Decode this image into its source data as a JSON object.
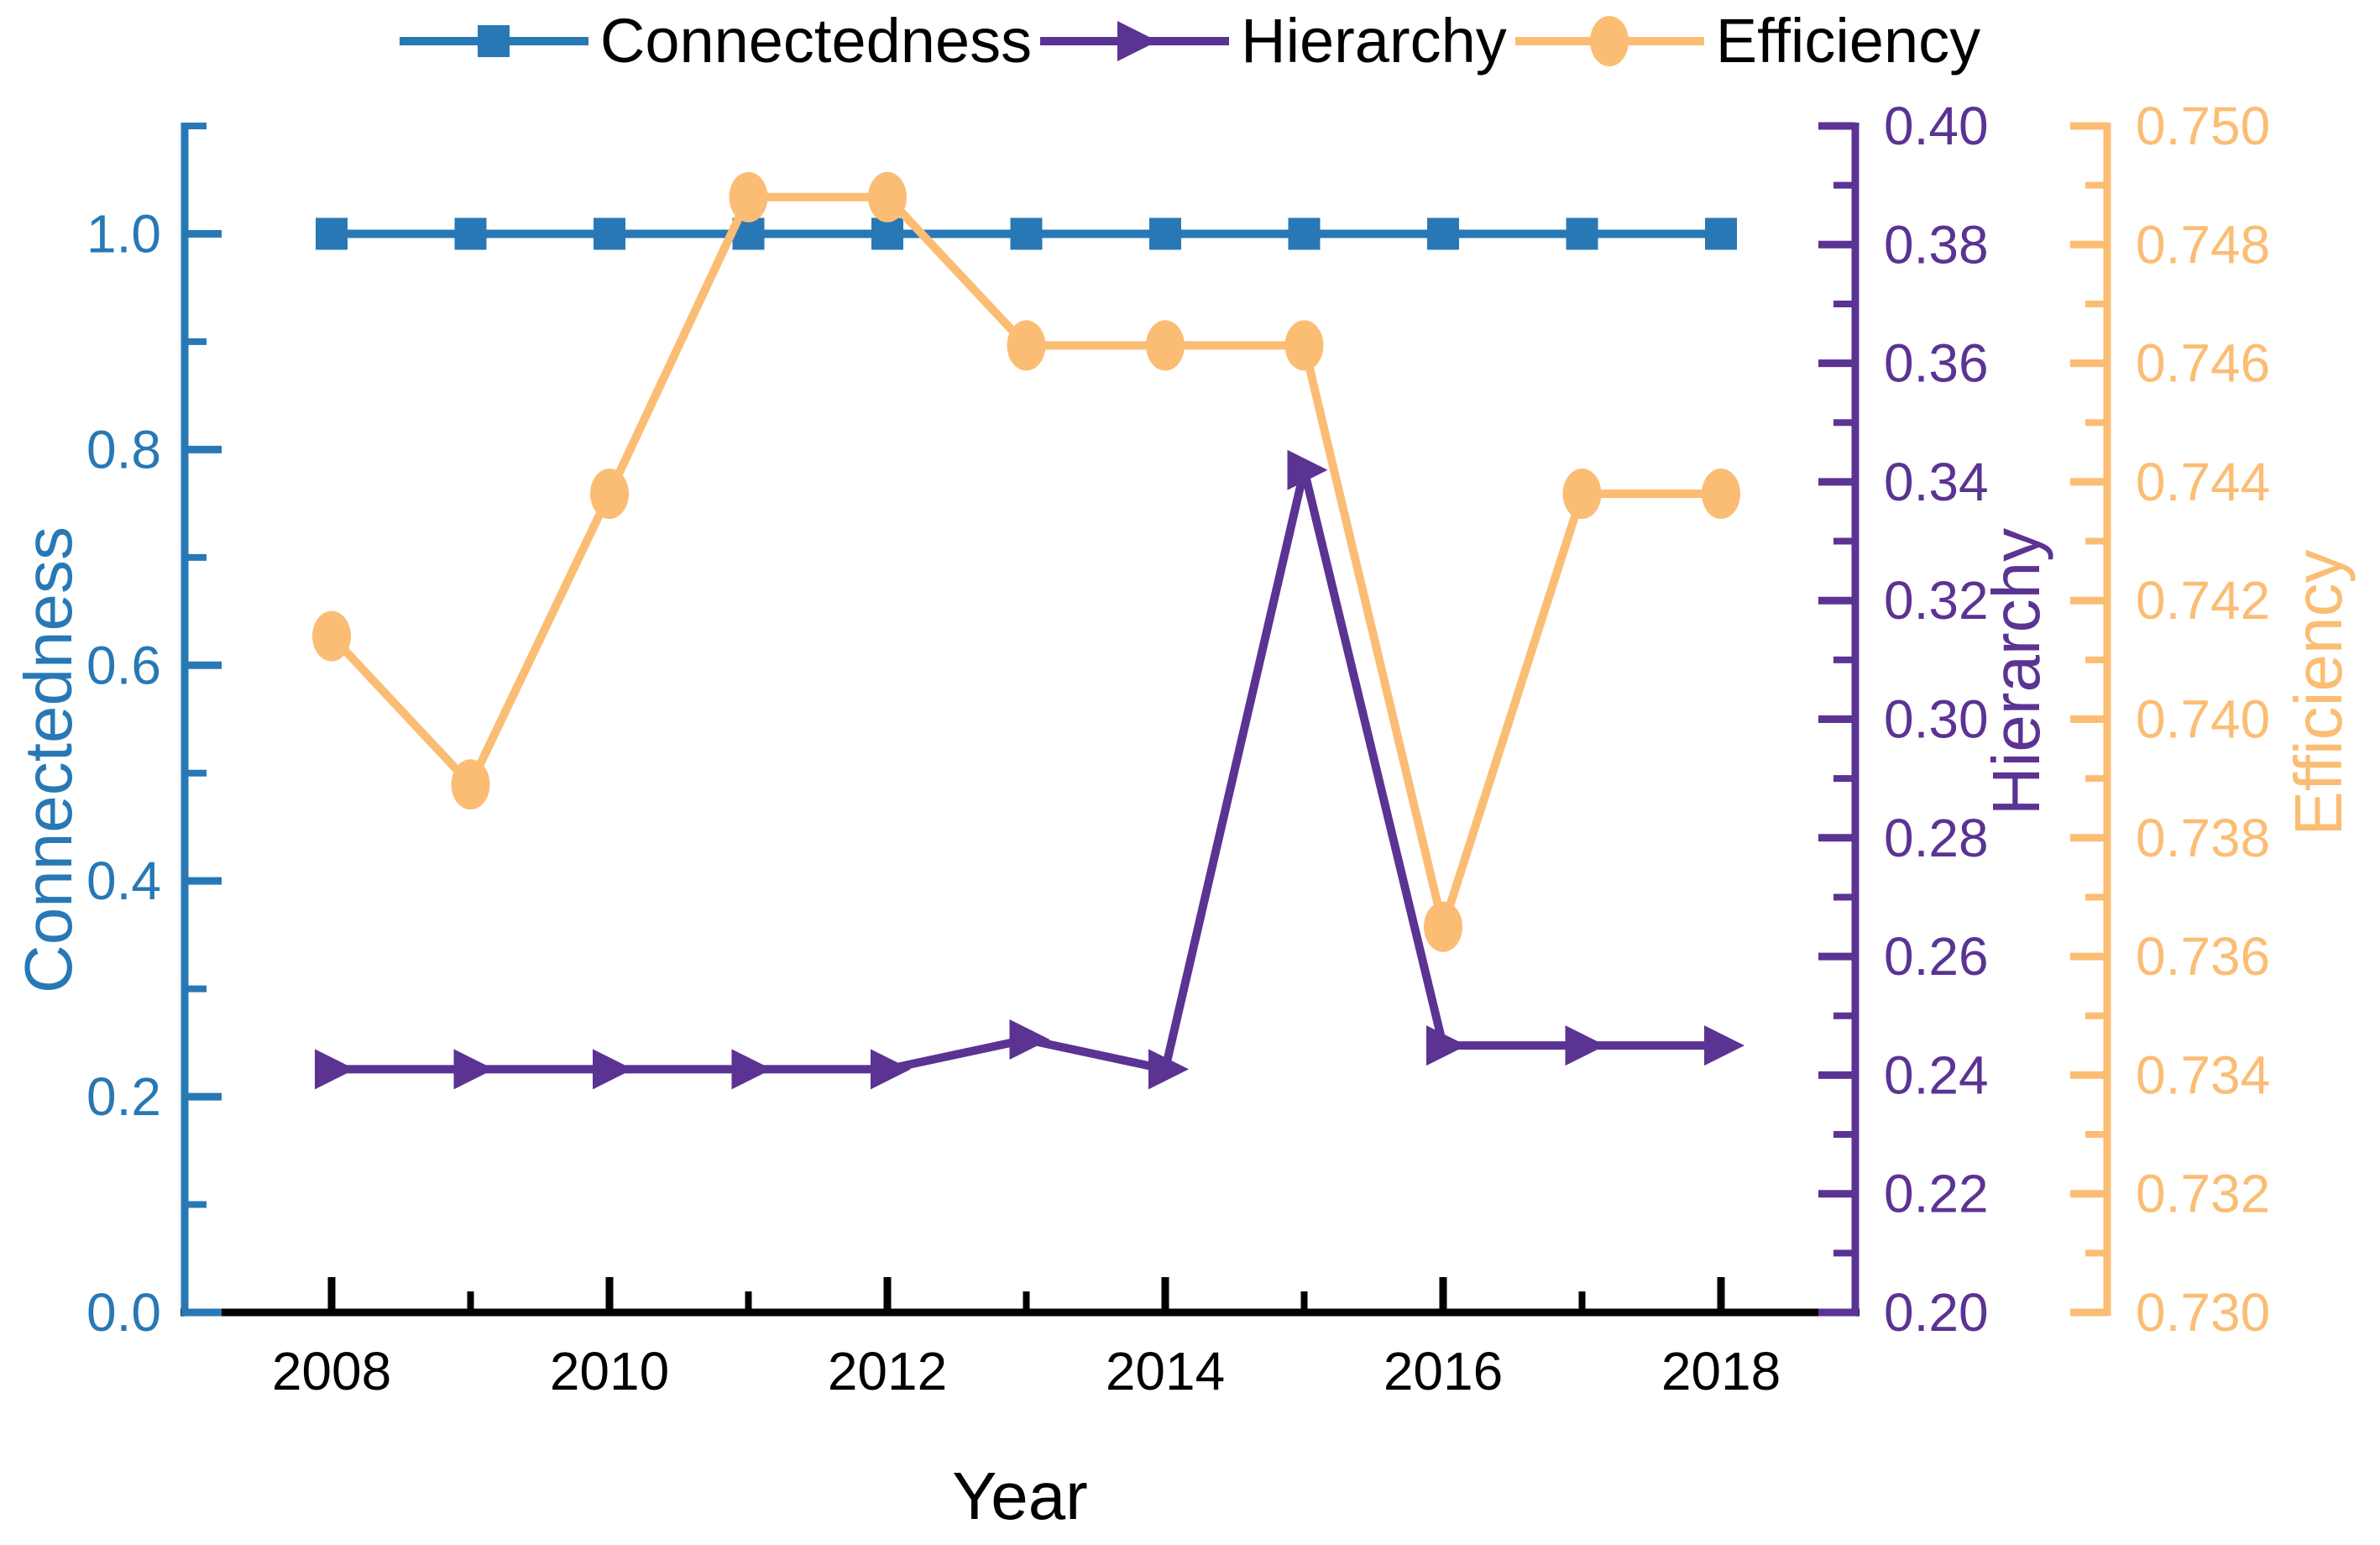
{
  "chart_data": {
    "type": "line",
    "title": "",
    "xlabel": "Year",
    "grid": false,
    "legend_position": "top-center-horizontal",
    "x": [
      2008,
      2009,
      2010,
      2011,
      2012,
      2013,
      2014,
      2015,
      2016,
      2017,
      2018
    ],
    "x_major_ticks": [
      2008,
      2010,
      2012,
      2014,
      2016,
      2018
    ],
    "x_major_tick_labels": [
      "2008",
      "2010",
      "2012",
      "2014",
      "2016",
      "2018"
    ],
    "x_minor_ticks": [
      2009,
      2011,
      2013,
      2015,
      2017
    ],
    "series": [
      {
        "name": "Connectedness",
        "axis": "connectedness",
        "color": "#2878B5",
        "marker": "square",
        "values": [
          1.0,
          1.0,
          1.0,
          1.0,
          1.0,
          1.0,
          1.0,
          1.0,
          1.0,
          1.0,
          1.0
        ]
      },
      {
        "name": "Hierarchy",
        "axis": "hierarchy",
        "color": "#5B3393",
        "marker": "triangle-right",
        "values": [
          0.241,
          0.241,
          0.241,
          0.241,
          0.241,
          0.246,
          0.241,
          0.342,
          0.245,
          0.245,
          0.245
        ]
      },
      {
        "name": "Efficiency",
        "axis": "efficiency",
        "color": "#FBBD74",
        "marker": "circle",
        "values": [
          0.7414,
          0.7389,
          0.7438,
          0.7488,
          0.7488,
          0.7463,
          0.7463,
          0.7463,
          0.7365,
          0.7438,
          0.7438
        ]
      }
    ],
    "axes": {
      "connectedness": {
        "label": "Connectedness",
        "side": "left",
        "color": "#2878B5",
        "min": 0.0,
        "max": 1.1,
        "tick_values": [
          0.0,
          0.2,
          0.4,
          0.6,
          0.8,
          1.0
        ],
        "tick_labels": [
          "0.0",
          "0.2",
          "0.4",
          "0.6",
          "0.8",
          "1.0"
        ],
        "minor_step": 0.1
      },
      "hierarchy": {
        "label": "Hierarchy",
        "side": "right-inner",
        "color": "#5B3393",
        "min": 0.2,
        "max": 0.4,
        "tick_values": [
          0.2,
          0.22,
          0.24,
          0.26,
          0.28,
          0.3,
          0.32,
          0.34,
          0.36,
          0.38,
          0.4
        ],
        "tick_labels": [
          "0.20",
          "0.22",
          "0.24",
          "0.26",
          "0.28",
          "0.30",
          "0.32",
          "0.34",
          "0.36",
          "0.38",
          "0.40"
        ],
        "minor_step": 0.01
      },
      "efficiency": {
        "label": "Efficiency",
        "side": "right-outer",
        "color": "#FBBD74",
        "min": 0.73,
        "max": 0.75,
        "tick_values": [
          0.73,
          0.732,
          0.734,
          0.736,
          0.738,
          0.74,
          0.742,
          0.744,
          0.746,
          0.748,
          0.75
        ],
        "tick_labels": [
          "0.730",
          "0.732",
          "0.734",
          "0.736",
          "0.738",
          "0.740",
          "0.742",
          "0.744",
          "0.746",
          "0.748",
          "0.750"
        ],
        "minor_step": 0.001
      }
    },
    "x_axis_color": "#000000"
  }
}
